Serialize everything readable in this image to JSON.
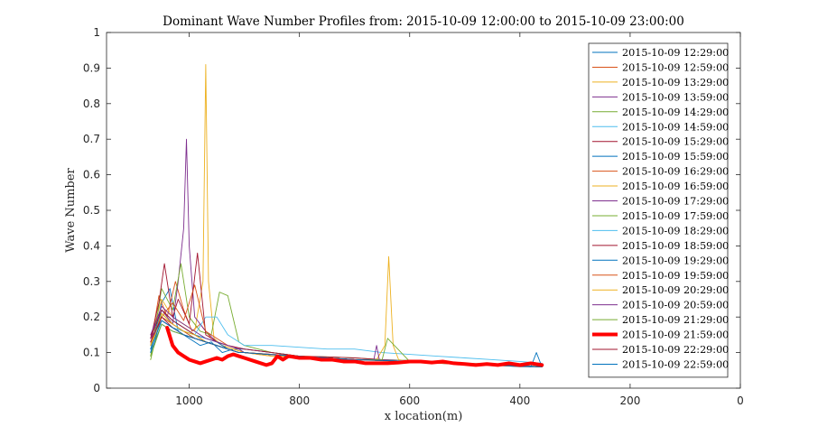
{
  "chart_data": {
    "type": "line",
    "title": "Dominant Wave Number Profiles from: 2015-10-09 12:00:00 to 2015-10-09 23:00:00",
    "xlabel": "x location(m)",
    "ylabel": "Wave Number",
    "xlim": [
      1150,
      0
    ],
    "ylim": [
      0,
      1
    ],
    "x_reversed": true,
    "x_ticks": [
      1000,
      800,
      600,
      400,
      200,
      0
    ],
    "y_ticks": [
      0,
      0.1,
      0.2,
      0.3,
      0.4,
      0.5,
      0.6,
      0.7,
      0.8,
      0.9,
      1
    ],
    "grid": false,
    "legend_position": "top-right",
    "highlight_series": "2015-10-09 21:59:00",
    "series": [
      {
        "name": "2015-10-09 12:29:00",
        "color": "#0072BD",
        "x": [
          1070,
          1050,
          1035,
          1020,
          1000,
          980,
          960,
          940,
          920,
          900,
          850,
          800,
          750,
          700,
          650,
          600,
          550,
          500,
          450,
          400,
          360
        ],
        "y": [
          0.1,
          0.24,
          0.28,
          0.16,
          0.14,
          0.12,
          0.13,
          0.1,
          0.11,
          0.11,
          0.1,
          0.09,
          0.085,
          0.08,
          0.078,
          0.075,
          0.07,
          0.068,
          0.065,
          0.06,
          0.06
        ]
      },
      {
        "name": "2015-10-09 12:59:00",
        "color": "#D95319",
        "x": [
          1070,
          1055,
          1040,
          1025,
          1010,
          995,
          980,
          960,
          940,
          920,
          900,
          850,
          800,
          750,
          700,
          650,
          600,
          550,
          500,
          450,
          400,
          360
        ],
        "y": [
          0.12,
          0.26,
          0.2,
          0.3,
          0.22,
          0.16,
          0.18,
          0.14,
          0.12,
          0.11,
          0.1,
          0.09,
          0.09,
          0.085,
          0.08,
          0.078,
          0.075,
          0.07,
          0.068,
          0.065,
          0.062,
          0.06
        ]
      },
      {
        "name": "2015-10-09 13:29:00",
        "color": "#EDB120",
        "x": [
          1070,
          1050,
          1030,
          1010,
          990,
          975,
          970,
          965,
          955,
          940,
          920,
          900,
          850,
          800,
          750,
          700,
          650,
          600,
          550,
          500,
          450,
          400,
          360
        ],
        "y": [
          0.14,
          0.25,
          0.2,
          0.18,
          0.16,
          0.3,
          0.91,
          0.3,
          0.14,
          0.12,
          0.11,
          0.1,
          0.09,
          0.088,
          0.085,
          0.08,
          0.078,
          0.075,
          0.07,
          0.068,
          0.065,
          0.062,
          0.06
        ]
      },
      {
        "name": "2015-10-09 13:59:00",
        "color": "#7E2F8E",
        "x": [
          1070,
          1050,
          1030,
          1020,
          1010,
          1005,
          1000,
          990,
          970,
          950,
          930,
          900,
          850,
          800,
          750,
          700,
          650,
          600,
          550,
          500,
          450,
          400,
          360
        ],
        "y": [
          0.15,
          0.22,
          0.18,
          0.3,
          0.45,
          0.7,
          0.4,
          0.2,
          0.16,
          0.13,
          0.12,
          0.11,
          0.1,
          0.09,
          0.085,
          0.08,
          0.08,
          0.078,
          0.072,
          0.07,
          0.066,
          0.063,
          0.06
        ]
      },
      {
        "name": "2015-10-09 14:29:00",
        "color": "#77AC30",
        "x": [
          1070,
          1050,
          1030,
          1015,
          1000,
          980,
          960,
          945,
          930,
          910,
          900,
          850,
          800,
          750,
          700,
          650,
          600,
          550,
          500,
          450,
          400,
          360
        ],
        "y": [
          0.09,
          0.28,
          0.22,
          0.35,
          0.2,
          0.16,
          0.15,
          0.27,
          0.26,
          0.13,
          0.12,
          0.1,
          0.09,
          0.088,
          0.085,
          0.08,
          0.078,
          0.075,
          0.07,
          0.068,
          0.065,
          0.06
        ]
      },
      {
        "name": "2015-10-09 14:59:00",
        "color": "#4DBEEE",
        "x": [
          1070,
          1050,
          1030,
          1010,
          990,
          970,
          950,
          930,
          910,
          900,
          850,
          800,
          750,
          700,
          650,
          600,
          550,
          500,
          450,
          400,
          360
        ],
        "y": [
          0.12,
          0.2,
          0.18,
          0.16,
          0.15,
          0.2,
          0.2,
          0.15,
          0.13,
          0.12,
          0.12,
          0.115,
          0.11,
          0.11,
          0.1,
          0.095,
          0.09,
          0.085,
          0.08,
          0.075,
          0.07
        ]
      },
      {
        "name": "2015-10-09 15:29:00",
        "color": "#A2142F",
        "x": [
          1070,
          1055,
          1045,
          1030,
          1020,
          1000,
          985,
          970,
          950,
          930,
          900,
          850,
          800,
          750,
          700,
          650,
          600,
          550,
          500,
          450,
          400,
          360
        ],
        "y": [
          0.14,
          0.24,
          0.35,
          0.2,
          0.25,
          0.18,
          0.38,
          0.15,
          0.13,
          0.12,
          0.11,
          0.1,
          0.09,
          0.088,
          0.085,
          0.08,
          0.076,
          0.072,
          0.07,
          0.066,
          0.063,
          0.06
        ]
      },
      {
        "name": "2015-10-09 15:59:00",
        "color": "#0072BD",
        "x": [
          1070,
          1050,
          1030,
          1010,
          990,
          970,
          950,
          930,
          910,
          900,
          850,
          800,
          750,
          700,
          650,
          600,
          550,
          500,
          450,
          400,
          360
        ],
        "y": [
          0.11,
          0.22,
          0.19,
          0.17,
          0.15,
          0.14,
          0.13,
          0.11,
          0.1,
          0.1,
          0.095,
          0.09,
          0.085,
          0.08,
          0.078,
          0.075,
          0.07,
          0.068,
          0.065,
          0.062,
          0.06
        ]
      },
      {
        "name": "2015-10-09 16:29:00",
        "color": "#D95319",
        "x": [
          1070,
          1050,
          1030,
          1010,
          990,
          970,
          950,
          930,
          910,
          900,
          850,
          800,
          750,
          700,
          650,
          600,
          550,
          500,
          450,
          400,
          360
        ],
        "y": [
          0.13,
          0.2,
          0.24,
          0.19,
          0.29,
          0.16,
          0.14,
          0.12,
          0.11,
          0.1,
          0.095,
          0.09,
          0.085,
          0.08,
          0.077,
          0.074,
          0.07,
          0.067,
          0.064,
          0.061,
          0.06
        ]
      },
      {
        "name": "2015-10-09 16:59:00",
        "color": "#EDB120",
        "x": [
          1070,
          1050,
          1030,
          1010,
          990,
          970,
          950,
          930,
          910,
          900,
          850,
          800,
          750,
          700,
          660,
          645,
          638,
          630,
          620,
          600,
          550,
          500,
          450,
          400,
          360
        ],
        "y": [
          0.12,
          0.19,
          0.17,
          0.16,
          0.14,
          0.13,
          0.12,
          0.11,
          0.1,
          0.1,
          0.095,
          0.09,
          0.085,
          0.08,
          0.08,
          0.12,
          0.37,
          0.12,
          0.08,
          0.076,
          0.072,
          0.068,
          0.065,
          0.062,
          0.06
        ]
      },
      {
        "name": "2015-10-09 17:29:00",
        "color": "#7E2F8E",
        "x": [
          1070,
          1050,
          1030,
          1010,
          990,
          970,
          950,
          930,
          910,
          900,
          850,
          800,
          750,
          700,
          665,
          660,
          655,
          600,
          550,
          500,
          450,
          400,
          360
        ],
        "y": [
          0.15,
          0.23,
          0.2,
          0.18,
          0.16,
          0.14,
          0.13,
          0.12,
          0.11,
          0.1,
          0.095,
          0.09,
          0.085,
          0.08,
          0.08,
          0.12,
          0.08,
          0.076,
          0.072,
          0.068,
          0.065,
          0.062,
          0.06
        ]
      },
      {
        "name": "2015-10-09 17:59:00",
        "color": "#77AC30",
        "x": [
          1070,
          1050,
          1030,
          1010,
          990,
          970,
          950,
          930,
          910,
          900,
          850,
          800,
          750,
          700,
          650,
          640,
          600,
          550,
          500,
          450,
          400,
          360
        ],
        "y": [
          0.08,
          0.21,
          0.18,
          0.16,
          0.15,
          0.13,
          0.12,
          0.11,
          0.1,
          0.1,
          0.094,
          0.09,
          0.085,
          0.08,
          0.08,
          0.14,
          0.075,
          0.072,
          0.068,
          0.065,
          0.062,
          0.06
        ]
      },
      {
        "name": "2015-10-09 18:29:00",
        "color": "#4DBEEE",
        "x": [
          1070,
          1050,
          1030,
          1010,
          990,
          970,
          950,
          930,
          910,
          900,
          850,
          800,
          750,
          700,
          650,
          600,
          550,
          500,
          450,
          400,
          360
        ],
        "y": [
          0.11,
          0.19,
          0.17,
          0.16,
          0.14,
          0.13,
          0.12,
          0.11,
          0.1,
          0.1,
          0.094,
          0.09,
          0.085,
          0.08,
          0.078,
          0.078,
          0.075,
          0.07,
          0.066,
          0.063,
          0.06
        ]
      },
      {
        "name": "2015-10-09 18:59:00",
        "color": "#A2142F",
        "x": [
          1070,
          1050,
          1030,
          1010,
          990,
          970,
          950,
          930,
          910,
          900,
          850,
          800,
          750,
          700,
          650,
          600,
          550,
          500,
          450,
          400,
          360
        ],
        "y": [
          0.14,
          0.22,
          0.19,
          0.17,
          0.15,
          0.13,
          0.12,
          0.11,
          0.1,
          0.1,
          0.094,
          0.09,
          0.085,
          0.08,
          0.078,
          0.075,
          0.072,
          0.068,
          0.065,
          0.062,
          0.06
        ]
      },
      {
        "name": "2015-10-09 19:29:00",
        "color": "#0072BD",
        "x": [
          1070,
          1050,
          1030,
          1010,
          990,
          970,
          950,
          930,
          910,
          900,
          850,
          800,
          750,
          700,
          650,
          600,
          550,
          500,
          450,
          400,
          380,
          370,
          360
        ],
        "y": [
          0.1,
          0.18,
          0.16,
          0.15,
          0.14,
          0.13,
          0.12,
          0.11,
          0.1,
          0.1,
          0.094,
          0.09,
          0.085,
          0.08,
          0.078,
          0.075,
          0.072,
          0.068,
          0.065,
          0.062,
          0.06,
          0.1,
          0.06
        ]
      },
      {
        "name": "2015-10-09 19:59:00",
        "color": "#D95319",
        "x": [
          1070,
          1050,
          1030,
          1010,
          990,
          970,
          950,
          930,
          910,
          900,
          850,
          800,
          750,
          700,
          650,
          600,
          550,
          500,
          450,
          400,
          360
        ],
        "y": [
          0.13,
          0.2,
          0.18,
          0.16,
          0.14,
          0.13,
          0.12,
          0.11,
          0.1,
          0.1,
          0.094,
          0.09,
          0.085,
          0.08,
          0.078,
          0.075,
          0.072,
          0.068,
          0.065,
          0.062,
          0.06
        ]
      },
      {
        "name": "2015-10-09 20:29:00",
        "color": "#EDB120",
        "x": [
          1070,
          1050,
          1030,
          1010,
          990,
          970,
          950,
          930,
          910,
          900,
          850,
          800,
          750,
          700,
          650,
          600,
          550,
          500,
          450,
          400,
          360
        ],
        "y": [
          0.12,
          0.21,
          0.18,
          0.16,
          0.15,
          0.13,
          0.12,
          0.11,
          0.1,
          0.1,
          0.094,
          0.09,
          0.085,
          0.08,
          0.078,
          0.075,
          0.072,
          0.068,
          0.065,
          0.062,
          0.06
        ]
      },
      {
        "name": "2015-10-09 20:59:00",
        "color": "#7E2F8E",
        "x": [
          1070,
          1050,
          1030,
          1010,
          990,
          970,
          950,
          930,
          910,
          900,
          850,
          800,
          750,
          700,
          650,
          600,
          550,
          500,
          450,
          400,
          360
        ],
        "y": [
          0.14,
          0.19,
          0.17,
          0.15,
          0.14,
          0.13,
          0.12,
          0.11,
          0.1,
          0.1,
          0.094,
          0.09,
          0.085,
          0.08,
          0.078,
          0.075,
          0.072,
          0.068,
          0.065,
          0.062,
          0.06
        ]
      },
      {
        "name": "2015-10-09 21:29:00",
        "color": "#77AC30",
        "x": [
          1070,
          1050,
          1030,
          1010,
          990,
          970,
          950,
          930,
          910,
          900,
          850,
          800,
          750,
          700,
          650,
          600,
          550,
          500,
          450,
          400,
          360
        ],
        "y": [
          0.09,
          0.18,
          0.16,
          0.15,
          0.14,
          0.13,
          0.12,
          0.11,
          0.1,
          0.1,
          0.094,
          0.09,
          0.085,
          0.08,
          0.078,
          0.075,
          0.072,
          0.068,
          0.065,
          0.062,
          0.06
        ]
      },
      {
        "name": "2015-10-09 21:59:00",
        "color": "#FF0000",
        "x": [
          1040,
          1030,
          1020,
          1010,
          1000,
          990,
          980,
          970,
          960,
          950,
          940,
          930,
          920,
          910,
          900,
          880,
          860,
          850,
          840,
          830,
          820,
          800,
          780,
          760,
          740,
          720,
          700,
          680,
          660,
          640,
          620,
          600,
          580,
          560,
          540,
          520,
          500,
          480,
          460,
          440,
          420,
          400,
          380,
          360
        ],
        "y": [
          0.17,
          0.12,
          0.1,
          0.09,
          0.08,
          0.075,
          0.07,
          0.075,
          0.08,
          0.085,
          0.08,
          0.09,
          0.095,
          0.09,
          0.085,
          0.075,
          0.065,
          0.07,
          0.09,
          0.08,
          0.09,
          0.085,
          0.085,
          0.08,
          0.08,
          0.075,
          0.075,
          0.07,
          0.07,
          0.07,
          0.072,
          0.075,
          0.075,
          0.072,
          0.075,
          0.07,
          0.068,
          0.065,
          0.068,
          0.065,
          0.07,
          0.065,
          0.07,
          0.065
        ]
      },
      {
        "name": "2015-10-09 22:29:00",
        "color": "#A2142F",
        "x": [
          1070,
          1050,
          1030,
          1010,
          990,
          970,
          950,
          930,
          910,
          900,
          850,
          800,
          750,
          700,
          650,
          600,
          550,
          500,
          450,
          400,
          360
        ],
        "y": [
          0.13,
          0.2,
          0.17,
          0.15,
          0.14,
          0.13,
          0.12,
          0.11,
          0.1,
          0.1,
          0.094,
          0.09,
          0.085,
          0.08,
          0.078,
          0.075,
          0.072,
          0.068,
          0.065,
          0.062,
          0.06
        ]
      },
      {
        "name": "2015-10-09 22:59:00",
        "color": "#0072BD",
        "x": [
          1070,
          1050,
          1030,
          1010,
          990,
          970,
          950,
          930,
          910,
          900,
          850,
          800,
          750,
          700,
          650,
          600,
          550,
          500,
          450,
          400,
          360
        ],
        "y": [
          0.11,
          0.19,
          0.17,
          0.15,
          0.14,
          0.13,
          0.12,
          0.11,
          0.1,
          0.1,
          0.094,
          0.09,
          0.085,
          0.08,
          0.078,
          0.075,
          0.072,
          0.068,
          0.065,
          0.062,
          0.06
        ]
      }
    ]
  }
}
